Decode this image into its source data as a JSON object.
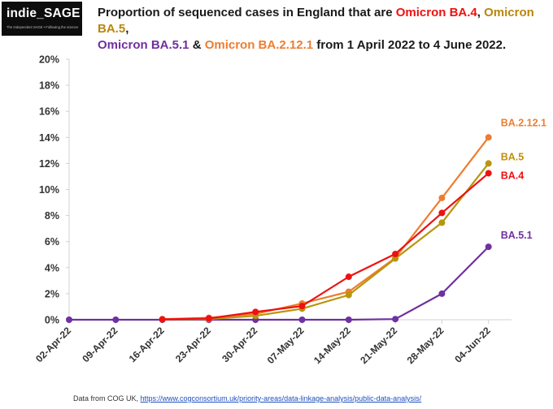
{
  "logo": {
    "text": "indie_SAGE",
    "tagline": "The Independent SAGE • Following the science"
  },
  "title": {
    "prefix": "Proportion of sequenced cases in England that are ",
    "ba4": "Omicron BA.4",
    "sep1": ", ",
    "ba5": "Omicron BA.5",
    "sep2": ",",
    "ba51": "Omicron BA.5.1",
    "amp": " & ",
    "ba212": "Omicron BA.2.12.1",
    "suffix": " from 1 April 2022 to 4 June 2022."
  },
  "footer": {
    "prefix": "Data from COG UK, ",
    "link": "https://www.cogconsortium.uk/priority-areas/data-linkage-analysis/public-data-analysis/"
  },
  "chart_data": {
    "type": "line",
    "categories": [
      "02-Apr-22",
      "09-Apr-22",
      "16-Apr-22",
      "23-Apr-22",
      "30-Apr-22",
      "07-May-22",
      "14-May-22",
      "21-May-22",
      "28-May-22",
      "04-Jun-22"
    ],
    "ylim": [
      0,
      20
    ],
    "yticks": [
      0,
      2,
      4,
      6,
      8,
      10,
      12,
      14,
      16,
      18,
      20
    ],
    "ytick_labels": [
      "0%",
      "2%",
      "4%",
      "6%",
      "8%",
      "10%",
      "12%",
      "14%",
      "16%",
      "18%",
      "20%"
    ],
    "series": [
      {
        "name": "BA.5.1",
        "color": "#7030a0",
        "values": [
          0,
          0,
          0,
          0,
          0,
          0,
          0,
          0.05,
          2.0,
          5.6
        ]
      },
      {
        "name": "BA.2.12.1",
        "color": "#ed7d31",
        "values": [
          null,
          null,
          0.05,
          0.15,
          0.45,
          1.25,
          2.15,
          4.75,
          9.35,
          14.0
        ]
      },
      {
        "name": "BA.5",
        "color": "#b8960c",
        "values": [
          null,
          null,
          0.02,
          0.05,
          0.3,
          0.85,
          1.9,
          4.7,
          7.45,
          12.0
        ]
      },
      {
        "name": "BA.4",
        "color": "#ee1111",
        "values": [
          null,
          null,
          0.03,
          0.1,
          0.6,
          1.05,
          3.3,
          5.05,
          8.2,
          11.25
        ]
      }
    ],
    "label_colors": {
      "BA.2.12.1": "#ed7d31",
      "BA.5": "#c0900b",
      "BA.4": "#ee1111",
      "BA.5.1": "#7030a0"
    },
    "grid": false
  }
}
